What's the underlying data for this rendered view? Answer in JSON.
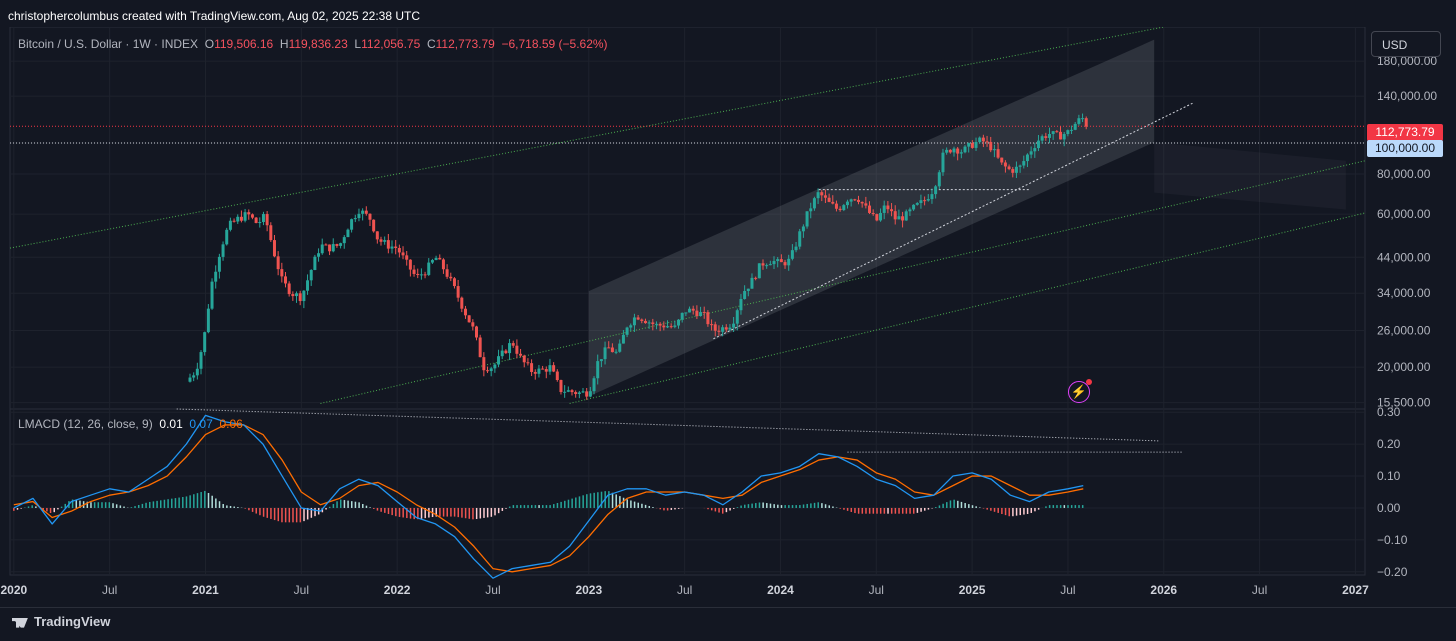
{
  "header": {
    "attribution": "christophercolumbus created with TradingView.com, Aug 02, 2025 22:38 UTC"
  },
  "legend": {
    "symbol": "Bitcoin / U.S. Dollar · 1W · INDEX",
    "o_label": "O",
    "o_value": "119,506.16",
    "h_label": "H",
    "h_value": "119,836.23",
    "l_label": "L",
    "l_value": "112,056.75",
    "c_label": "C",
    "c_value": "112,773.79",
    "change": "−6,718.59 (−5.62%)"
  },
  "macd_legend": {
    "name": "LMACD (12, 26, close, 9)",
    "hist": "0.01",
    "macd": "0.07",
    "signal": "0.06"
  },
  "currency_button": "USD",
  "price_tags": {
    "last": "112,773.79",
    "level": "100,000.00"
  },
  "footer": {
    "brand": "TradingView"
  },
  "colors": {
    "background": "#131722",
    "up": "#26a69a",
    "down": "#ef5350",
    "macd": "#2196f3",
    "signal": "#ff6d00",
    "channel": "#4caf50",
    "price_line": "#f23645",
    "icon": "#e040fb"
  },
  "icons": {
    "alert": "lightning-bolt-icon",
    "logo": "tradingview-logo-icon"
  },
  "chart_data": [
    {
      "type": "candlestick",
      "title": "Bitcoin / U.S. Dollar · 1W · INDEX",
      "yscale": "log",
      "ylim": [
        14800,
        230000
      ],
      "y_ticks": [
        15500,
        20000,
        26000,
        34000,
        44000,
        60000,
        80000,
        100000,
        140000,
        180000
      ],
      "y_tick_labels": [
        "15,500.00",
        "20,000.00",
        "26,000.00",
        "34,000.00",
        "44,000.00",
        "60,000.00",
        "80,000.00",
        "100,000.00",
        "140,000.00",
        "180,000.00"
      ],
      "x_ticks": [
        "2020",
        "Jul",
        "2021",
        "Jul",
        "2022",
        "Jul",
        "2023",
        "Jul",
        "2024",
        "Jul",
        "2025",
        "Jul",
        "2026",
        "Jul",
        "2027"
      ],
      "xlim": [
        2019.98,
        2027.05
      ],
      "grid": true,
      "horizontal_lines": [
        112773.79,
        100000
      ],
      "path": [
        [
          2020.9,
          18000
        ],
        [
          2020.95,
          19500
        ],
        [
          2020.99,
          24000
        ],
        [
          2021.03,
          36000
        ],
        [
          2021.08,
          47000
        ],
        [
          2021.12,
          55000
        ],
        [
          2021.17,
          58000
        ],
        [
          2021.22,
          60000
        ],
        [
          2021.27,
          56000
        ],
        [
          2021.31,
          59000
        ],
        [
          2021.36,
          45000
        ],
        [
          2021.4,
          37000
        ],
        [
          2021.45,
          34000
        ],
        [
          2021.5,
          33000
        ],
        [
          2021.55,
          40000
        ],
        [
          2021.6,
          48000
        ],
        [
          2021.64,
          47000
        ],
        [
          2021.7,
          48000
        ],
        [
          2021.75,
          56000
        ],
        [
          2021.8,
          62000
        ],
        [
          2021.86,
          58000
        ],
        [
          2021.9,
          50000
        ],
        [
          2021.95,
          48000
        ],
        [
          2022.0,
          47000
        ],
        [
          2022.05,
          42000
        ],
        [
          2022.1,
          38000
        ],
        [
          2022.15,
          40000
        ],
        [
          2022.2,
          44000
        ],
        [
          2022.25,
          40000
        ],
        [
          2022.3,
          35000
        ],
        [
          2022.35,
          30000
        ],
        [
          2022.4,
          26000
        ],
        [
          2022.45,
          20000
        ],
        [
          2022.5,
          20000
        ],
        [
          2022.55,
          22000
        ],
        [
          2022.6,
          24000
        ],
        [
          2022.65,
          21000
        ],
        [
          2022.7,
          19500
        ],
        [
          2022.75,
          19500
        ],
        [
          2022.8,
          20000
        ],
        [
          2022.85,
          17000
        ],
        [
          2022.9,
          16800
        ],
        [
          2022.95,
          16600
        ],
        [
          2023.0,
          16700
        ],
        [
          2023.05,
          21000
        ],
        [
          2023.1,
          23000
        ],
        [
          2023.15,
          22000
        ],
        [
          2023.2,
          27000
        ],
        [
          2023.25,
          29000
        ],
        [
          2023.3,
          28000
        ],
        [
          2023.35,
          27000
        ],
        [
          2023.4,
          27000
        ],
        [
          2023.45,
          26500
        ],
        [
          2023.5,
          30000
        ],
        [
          2023.55,
          30000
        ],
        [
          2023.6,
          29000
        ],
        [
          2023.65,
          26000
        ],
        [
          2023.7,
          26500
        ],
        [
          2023.75,
          27500
        ],
        [
          2023.8,
          34000
        ],
        [
          2023.85,
          37000
        ],
        [
          2023.9,
          42000
        ],
        [
          2023.95,
          43000
        ],
        [
          2024.0,
          42000
        ],
        [
          2024.05,
          43000
        ],
        [
          2024.1,
          52000
        ],
        [
          2024.15,
          62000
        ],
        [
          2024.2,
          70000
        ],
        [
          2024.25,
          65000
        ],
        [
          2024.3,
          62000
        ],
        [
          2024.35,
          67000
        ],
        [
          2024.4,
          68000
        ],
        [
          2024.45,
          62000
        ],
        [
          2024.5,
          57000
        ],
        [
          2024.55,
          64000
        ],
        [
          2024.6,
          58000
        ],
        [
          2024.65,
          59000
        ],
        [
          2024.7,
          63000
        ],
        [
          2024.75,
          66000
        ],
        [
          2024.8,
          72000
        ],
        [
          2024.85,
          92000
        ],
        [
          2024.9,
          97000
        ],
        [
          2024.95,
          94000
        ],
        [
          2025.0,
          99000
        ],
        [
          2025.05,
          102000
        ],
        [
          2025.1,
          97000
        ],
        [
          2025.15,
          86000
        ],
        [
          2025.2,
          82000
        ],
        [
          2025.25,
          84000
        ],
        [
          2025.3,
          94000
        ],
        [
          2025.35,
          103000
        ],
        [
          2025.4,
          107000
        ],
        [
          2025.45,
          105000
        ],
        [
          2025.5,
          108000
        ],
        [
          2025.55,
          117000
        ],
        [
          2025.58,
          119500
        ],
        [
          2025.6,
          112773.79
        ]
      ],
      "last_close": 112773.79
    },
    {
      "type": "macd",
      "title": "LMACD (12, 26, close, 9)",
      "ylim": [
        -0.21,
        0.31
      ],
      "y_ticks": [
        -0.2,
        -0.1,
        0,
        0.1,
        0.2,
        0.3
      ],
      "y_tick_labels": [
        "−0.20",
        "−0.10",
        "0.00",
        "0.10",
        "0.20",
        "0.30"
      ],
      "series": [
        {
          "name": "MACD",
          "x": [
            2020.0,
            2020.1,
            2020.2,
            2020.3,
            2020.4,
            2020.5,
            2020.6,
            2020.7,
            2020.8,
            2020.9,
            2021.0,
            2021.1,
            2021.2,
            2021.3,
            2021.4,
            2021.5,
            2021.6,
            2021.7,
            2021.8,
            2021.9,
            2022.0,
            2022.1,
            2022.2,
            2022.3,
            2022.4,
            2022.5,
            2022.6,
            2022.7,
            2022.8,
            2022.9,
            2023.0,
            2023.1,
            2023.2,
            2023.3,
            2023.4,
            2023.5,
            2023.6,
            2023.7,
            2023.8,
            2023.9,
            2024.0,
            2024.1,
            2024.2,
            2024.3,
            2024.4,
            2024.5,
            2024.6,
            2024.7,
            2024.8,
            2024.9,
            2025.0,
            2025.1,
            2025.2,
            2025.3,
            2025.4,
            2025.5,
            2025.58
          ],
          "values": [
            0.0,
            0.03,
            -0.05,
            0.02,
            0.04,
            0.06,
            0.05,
            0.09,
            0.13,
            0.2,
            0.29,
            0.27,
            0.26,
            0.2,
            0.1,
            0.0,
            -0.01,
            0.06,
            0.09,
            0.07,
            0.02,
            -0.03,
            -0.05,
            -0.09,
            -0.16,
            -0.22,
            -0.19,
            -0.18,
            -0.17,
            -0.12,
            -0.04,
            0.04,
            0.06,
            0.06,
            0.04,
            0.05,
            0.04,
            0.01,
            0.05,
            0.1,
            0.11,
            0.13,
            0.17,
            0.16,
            0.13,
            0.09,
            0.07,
            0.03,
            0.04,
            0.1,
            0.11,
            0.09,
            0.04,
            0.02,
            0.05,
            0.06,
            0.07
          ]
        },
        {
          "name": "Signal",
          "x": [
            2020.0,
            2020.1,
            2020.2,
            2020.3,
            2020.4,
            2020.5,
            2020.6,
            2020.7,
            2020.8,
            2020.9,
            2021.0,
            2021.1,
            2021.2,
            2021.3,
            2021.4,
            2021.5,
            2021.6,
            2021.7,
            2021.8,
            2021.9,
            2022.0,
            2022.1,
            2022.2,
            2022.3,
            2022.4,
            2022.5,
            2022.6,
            2022.7,
            2022.8,
            2022.9,
            2023.0,
            2023.1,
            2023.2,
            2023.3,
            2023.4,
            2023.5,
            2023.6,
            2023.7,
            2023.8,
            2023.9,
            2024.0,
            2024.1,
            2024.2,
            2024.3,
            2024.4,
            2024.5,
            2024.6,
            2024.7,
            2024.8,
            2024.9,
            2025.0,
            2025.1,
            2025.2,
            2025.3,
            2025.4,
            2025.5,
            2025.58
          ],
          "values": [
            0.01,
            0.02,
            -0.03,
            -0.01,
            0.02,
            0.04,
            0.05,
            0.07,
            0.1,
            0.16,
            0.23,
            0.26,
            0.26,
            0.23,
            0.15,
            0.05,
            0.01,
            0.03,
            0.07,
            0.08,
            0.05,
            0.01,
            -0.02,
            -0.06,
            -0.12,
            -0.19,
            -0.2,
            -0.19,
            -0.18,
            -0.15,
            -0.09,
            -0.02,
            0.03,
            0.05,
            0.05,
            0.05,
            0.04,
            0.03,
            0.04,
            0.08,
            0.1,
            0.12,
            0.15,
            0.16,
            0.15,
            0.11,
            0.09,
            0.05,
            0.04,
            0.07,
            0.1,
            0.1,
            0.07,
            0.04,
            0.04,
            0.05,
            0.06
          ]
        }
      ]
    }
  ]
}
